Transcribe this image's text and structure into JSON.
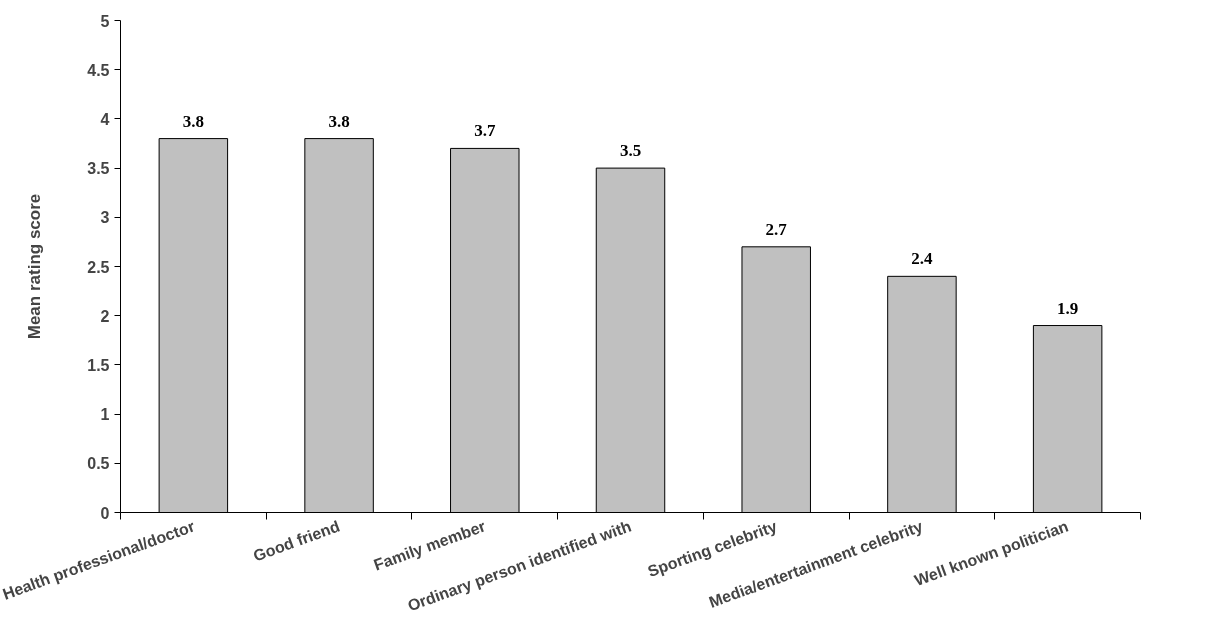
{
  "chart_data": {
    "type": "bar",
    "ylabel": "Mean rating score",
    "categories": [
      "Health professional/doctor",
      "Good friend",
      "Family member",
      "Ordinary person identified with",
      "Sporting celebrity",
      "Media/entertainment celebrity",
      "Well known politician"
    ],
    "values": [
      3.8,
      3.8,
      3.7,
      3.5,
      2.7,
      2.4,
      1.9
    ],
    "color": "#c0c0c0",
    "ylim": [
      0,
      5
    ],
    "yticks": [
      0,
      0.5,
      1,
      1.5,
      2,
      2.5,
      3,
      3.5,
      4,
      4.5,
      5
    ],
    "data_labels": true,
    "grid": false
  }
}
